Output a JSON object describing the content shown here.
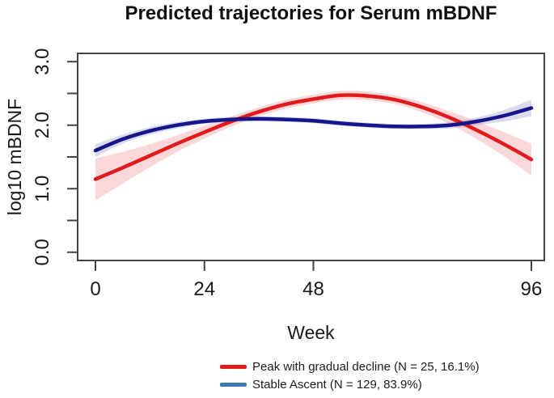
{
  "figure": {
    "title": "Predicted trajectories for Serum mBDNF"
  },
  "chart_data": {
    "type": "line",
    "title": "Predicted trajectories for Serum mBDNF",
    "xlabel": "Week",
    "ylabel": "log10 mBDNF",
    "x_tick_values": [
      0,
      24,
      48,
      96
    ],
    "x_tick_labels": [
      "0",
      "24",
      "48",
      "96"
    ],
    "y_tick_values": [
      0,
      0.5,
      1,
      1.5,
      2,
      2.5,
      3
    ],
    "y_tick_labels": [
      "0.0",
      "",
      "1.0",
      "",
      "2.0",
      "",
      "3.0"
    ],
    "xlim": [
      -3.92,
      98.85
    ],
    "ylim": [
      -0.13,
      3.13
    ],
    "grid": false,
    "legend_position": "below-plot-right",
    "axis_color": "#444444",
    "x": [
      0,
      6,
      12,
      18,
      24,
      30,
      36,
      42,
      48,
      54,
      60,
      66,
      72,
      78,
      84,
      90,
      96
    ],
    "series": [
      {
        "name": "Peak with gradual decline (N = 25, 16.1%)",
        "color": "#e31a1c",
        "band_color": "rgba(227,26,28,0.17)",
        "legend_color": "#e31a1c",
        "values": [
          1.15,
          1.33,
          1.52,
          1.71,
          1.89,
          2.06,
          2.21,
          2.33,
          2.41,
          2.47,
          2.46,
          2.4,
          2.28,
          2.12,
          1.92,
          1.7,
          1.46
        ],
        "ci_halfwidth": [
          0.33,
          0.25,
          0.18,
          0.13,
          0.1,
          0.08,
          0.07,
          0.07,
          0.07,
          0.07,
          0.07,
          0.07,
          0.08,
          0.1,
          0.14,
          0.19,
          0.25
        ]
      },
      {
        "name": "Stable Ascent (N = 129, 83.9%)",
        "color": "#16168c",
        "band_color": "rgba(30,30,150,0.16)",
        "legend_color": "#3c78b4",
        "values": [
          1.6,
          1.78,
          1.91,
          2.0,
          2.06,
          2.09,
          2.1,
          2.09,
          2.07,
          2.03,
          2.0,
          1.98,
          1.98,
          2.0,
          2.06,
          2.15,
          2.27
        ],
        "ci_halfwidth": [
          0.1,
          0.07,
          0.06,
          0.05,
          0.04,
          0.04,
          0.04,
          0.04,
          0.04,
          0.04,
          0.04,
          0.04,
          0.04,
          0.05,
          0.06,
          0.09,
          0.13
        ]
      }
    ]
  }
}
